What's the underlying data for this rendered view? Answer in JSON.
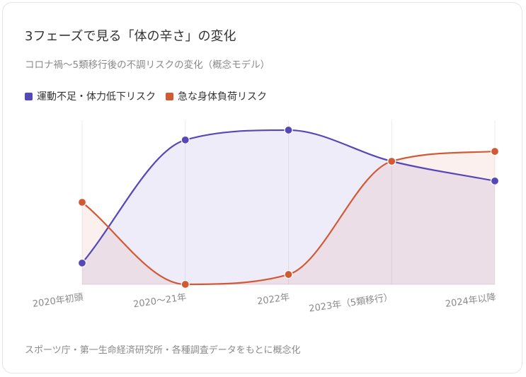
{
  "title": "3フェーズで見る「体の辛さ」の変化",
  "subtitle": "コロナ禍～5類移行後の不調リスクの変化（概念モデル）",
  "footer": "スポーツ庁・第一生命経済研究所・各種調査データをもとに概念化",
  "colors": {
    "purple": "#5647b8",
    "orange": "#d15a35"
  },
  "chart_data": {
    "type": "area",
    "categories": [
      "2020年初頭",
      "2020～21年",
      "2022年",
      "2023年（5類移行）",
      "2024年以降"
    ],
    "series": [
      {
        "name": "運動不足・体力低下リスク",
        "color": "#5647b8",
        "values": [
          13,
          88,
          94,
          75,
          63
        ]
      },
      {
        "name": "急な身体負荷リスク",
        "color": "#d15a35",
        "values": [
          50,
          0,
          6,
          75,
          81
        ]
      }
    ],
    "ylim": [
      0,
      100
    ],
    "legend_position": "top-left",
    "grid": "vertical"
  }
}
